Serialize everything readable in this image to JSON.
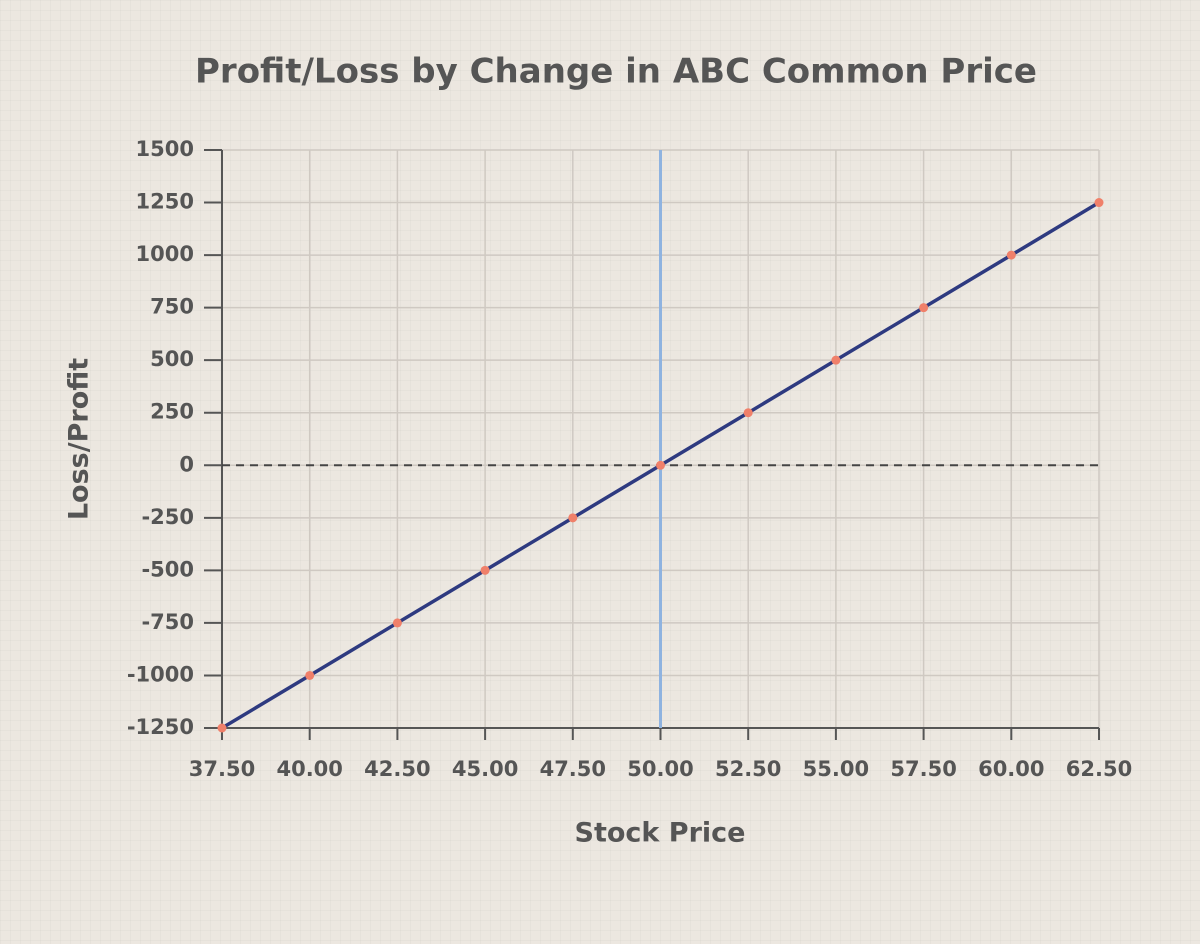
{
  "chart_data": {
    "type": "line",
    "title": "Profit/Loss by Change in ABC Common Price",
    "x_label": "Stock Price",
    "y_label": "Loss/Profit",
    "x": [
      37.5,
      40,
      42.5,
      45,
      47.5,
      50,
      52.5,
      55,
      57.5,
      60,
      62.5
    ],
    "values": [
      -1250,
      -1000,
      -750,
      -500,
      -250,
      0,
      250,
      500,
      750,
      1000,
      1250
    ],
    "color": "#2e3a80",
    "marker_color": "#f0806a",
    "xlim": [
      37.5,
      62.5
    ],
    "ylim": [
      -1250,
      1500
    ],
    "xticks": [
      {
        "value": 37.5,
        "label": "37.50"
      },
      {
        "value": 40,
        "label": "40.00"
      },
      {
        "value": 42.5,
        "label": "42.50"
      },
      {
        "value": 45,
        "label": "45.00"
      },
      {
        "value": 47.5,
        "label": "47.50"
      },
      {
        "value": 50,
        "label": "50.00"
      },
      {
        "value": 52.5,
        "label": "52.50"
      },
      {
        "value": 55,
        "label": "55.00"
      },
      {
        "value": 57.5,
        "label": "57.50"
      },
      {
        "value": 60,
        "label": "60.00"
      },
      {
        "value": 62.5,
        "label": "62.50"
      }
    ],
    "yticks": [
      -1250,
      -1000,
      -750,
      -500,
      -250,
      0,
      250,
      500,
      750,
      1000,
      1250,
      1500
    ],
    "grid": true,
    "vline": {
      "value": 50,
      "color": "#8fb3e0"
    },
    "hline": {
      "value": 0,
      "color": "#444444"
    }
  }
}
